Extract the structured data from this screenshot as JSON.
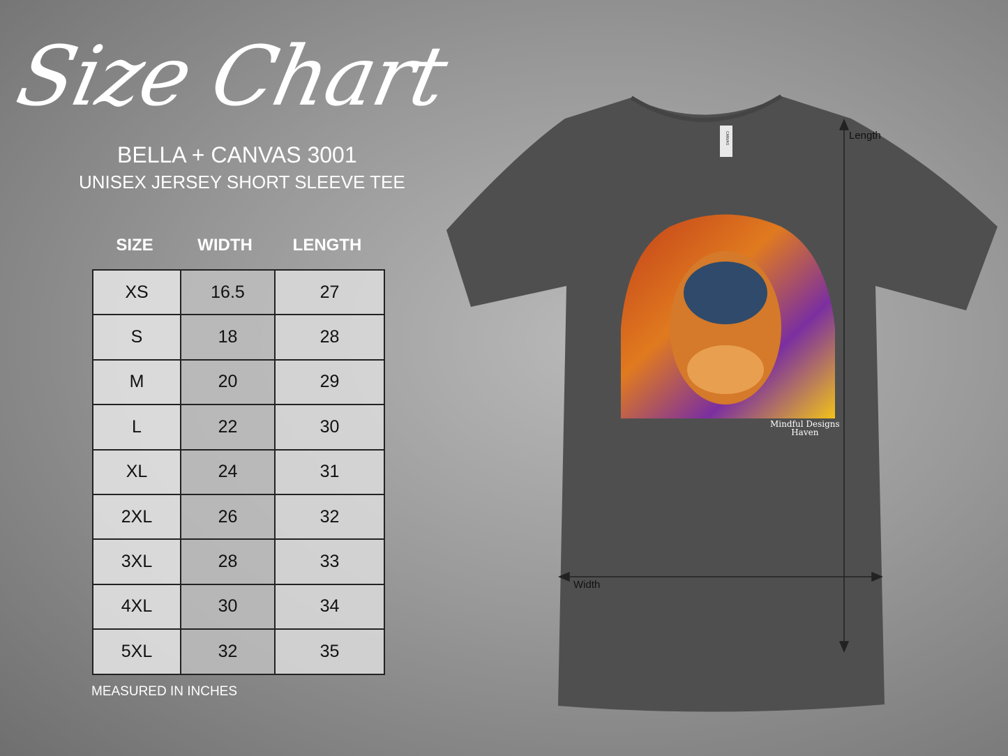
{
  "title": "Size Chart",
  "brand": "BELLA + CANVAS 3001",
  "subtitle": "UNISEX JERSEY SHORT SLEEVE TEE",
  "table": {
    "headers": [
      "SIZE",
      "WIDTH",
      "LENGTH"
    ],
    "rows": [
      [
        "XS",
        "16.5",
        "27"
      ],
      [
        "S",
        "18",
        "28"
      ],
      [
        "M",
        "20",
        "29"
      ],
      [
        "L",
        "22",
        "30"
      ],
      [
        "XL",
        "24",
        "31"
      ],
      [
        "2XL",
        "26",
        "32"
      ],
      [
        "3XL",
        "28",
        "33"
      ],
      [
        "4XL",
        "30",
        "34"
      ],
      [
        "5XL",
        "32",
        "35"
      ]
    ]
  },
  "note": "MEASURED IN INCHES",
  "shirt": {
    "color": "#4f4f4f",
    "length_label": "Length",
    "width_label": "Width",
    "watermark_line1": "Mindful Designs",
    "watermark_line2": "Haven",
    "tag_text": "CANVAS"
  }
}
